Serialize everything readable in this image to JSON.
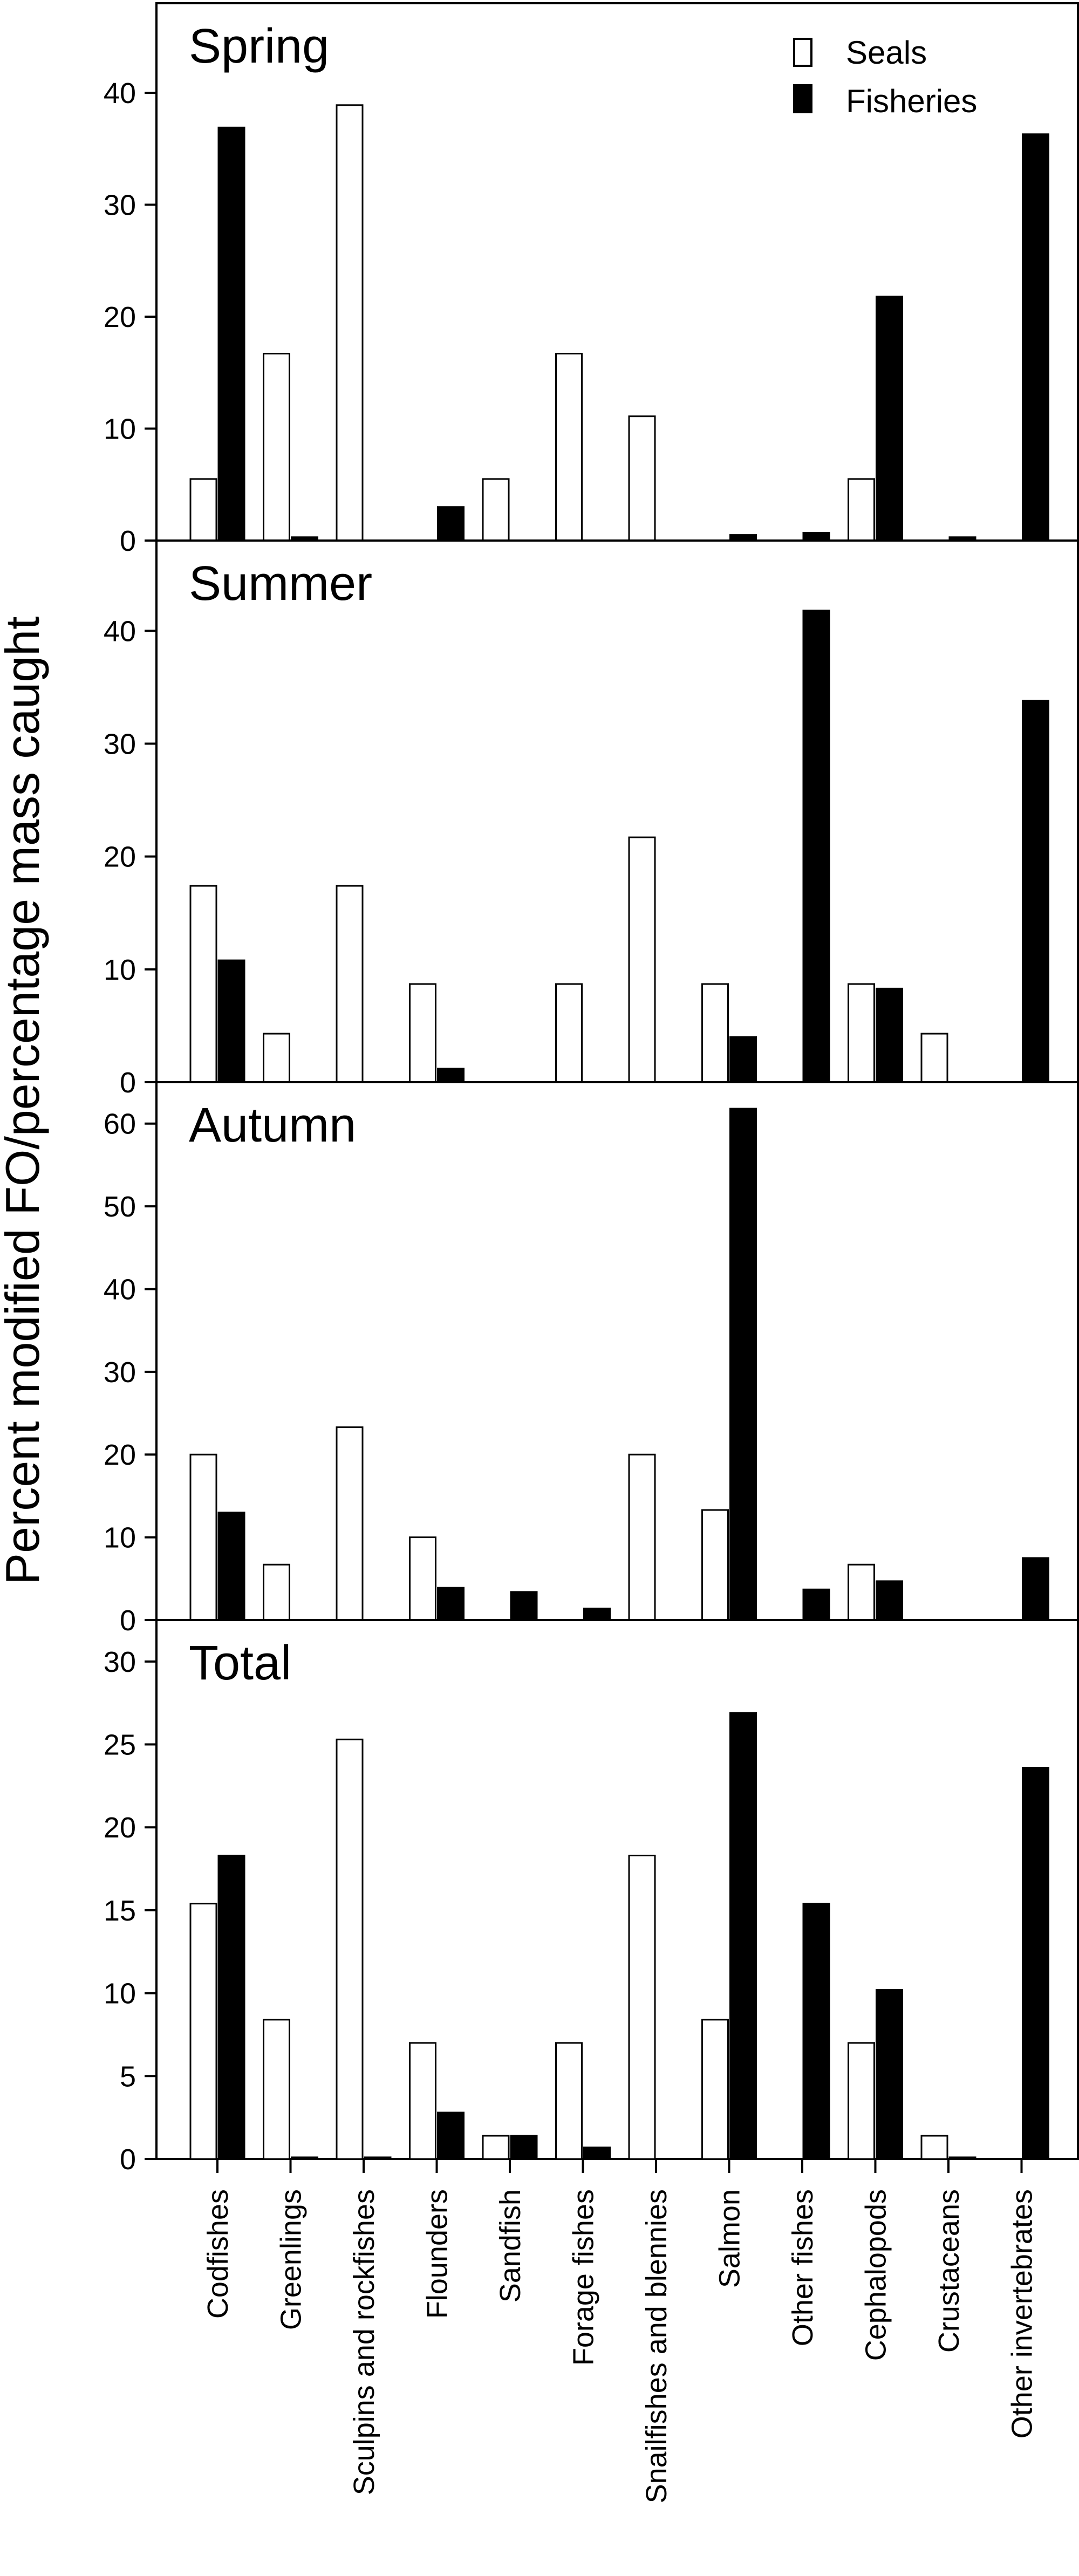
{
  "chart_data": {
    "type": "bar",
    "ylabel": "Percent modified FO/percentage mass caught",
    "categories": [
      "Codfishes",
      "Greenlings",
      "Sculpins and rockfishes",
      "Flounders",
      "Sandfish",
      "Forage fishes",
      "Snailfishes and blennies",
      "Salmon",
      "Other fishes",
      "Cephalopods",
      "Crustaceans",
      "Other invertebrates"
    ],
    "legend": {
      "placement": "top-right",
      "entries": [
        {
          "name": "Seals",
          "color": "#ffffff"
        },
        {
          "name": "Fisheries",
          "color": "#000000"
        }
      ]
    },
    "colors": {
      "seals": "#ffffff",
      "fisheries": "#000000",
      "outline": "#000000"
    },
    "panels": [
      {
        "title": "Spring",
        "ylim": [
          0,
          48
        ],
        "yticks": [
          0,
          10,
          20,
          30,
          40
        ],
        "series": [
          {
            "name": "Seals",
            "values": [
              5.5,
              16.7,
              38.9,
              0,
              5.5,
              16.7,
              11.1,
              0,
              0,
              5.5,
              0,
              0
            ]
          },
          {
            "name": "Fisheries",
            "values": [
              36.9,
              0.3,
              0,
              3.0,
              0,
              0,
              0,
              0.5,
              0.7,
              21.8,
              0.3,
              36.3
            ]
          }
        ]
      },
      {
        "title": "Summer",
        "ylim": [
          0,
          48
        ],
        "yticks": [
          0,
          10,
          20,
          30,
          40
        ],
        "series": [
          {
            "name": "Seals",
            "values": [
              17.4,
              4.3,
              17.4,
              8.7,
              0,
              8.7,
              21.7,
              8.7,
              0,
              8.7,
              4.3,
              0
            ]
          },
          {
            "name": "Fisheries",
            "values": [
              10.8,
              0,
              0,
              1.2,
              0,
              0,
              0,
              4.0,
              41.8,
              8.3,
              0,
              33.8
            ]
          }
        ]
      },
      {
        "title": "Autumn",
        "ylim": [
          0,
          65
        ],
        "yticks": [
          0,
          10,
          20,
          30,
          40,
          50,
          60
        ],
        "series": [
          {
            "name": "Seals",
            "values": [
              20.0,
              6.7,
              23.3,
              10.0,
              0,
              0,
              20.0,
              13.3,
              0,
              6.7,
              0,
              0
            ]
          },
          {
            "name": "Fisheries",
            "values": [
              13.0,
              0,
              0,
              3.9,
              3.4,
              1.4,
              0,
              61.8,
              3.7,
              4.7,
              0,
              7.5
            ]
          }
        ]
      },
      {
        "title": "Total",
        "ylim": [
          0,
          32.5
        ],
        "yticks": [
          0,
          5,
          10,
          15,
          20,
          25,
          30
        ],
        "series": [
          {
            "name": "Seals",
            "values": [
              15.4,
              8.4,
              25.3,
              7.0,
              1.4,
              7.0,
              18.3,
              8.4,
              0,
              7.0,
              1.4,
              0
            ]
          },
          {
            "name": "Fisheries",
            "values": [
              18.3,
              0.1,
              0.1,
              2.8,
              1.4,
              0.7,
              0,
              26.9,
              15.4,
              10.2,
              0.1,
              23.6
            ]
          }
        ]
      }
    ]
  }
}
